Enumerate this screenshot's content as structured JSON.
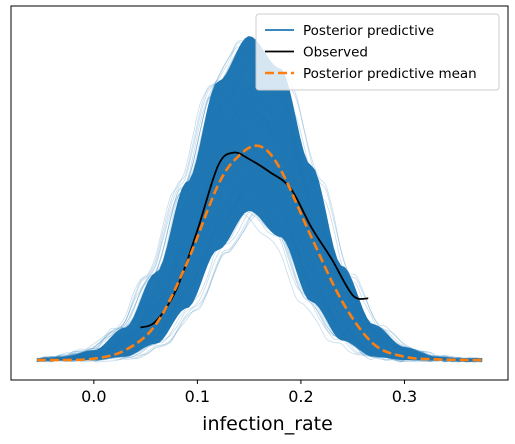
{
  "chart_data": {
    "type": "line",
    "title": "",
    "xlabel": "infection_rate",
    "ylabel": "",
    "xlim": [
      -0.08,
      0.4
    ],
    "ylim": [
      0,
      1.0
    ],
    "xticks": [
      0.0,
      0.1,
      0.2,
      0.3
    ],
    "xtick_labels": [
      "0.0",
      "0.1",
      "0.2",
      "0.3"
    ],
    "yticks_visible": false,
    "grid": false,
    "legend": {
      "position": "upper-right",
      "entries": [
        {
          "label": "Posterior predictive",
          "color": "#1f77b4",
          "style": "solid"
        },
        {
          "label": "Observed",
          "color": "#000000",
          "style": "solid"
        },
        {
          "label": "Posterior predictive mean",
          "color": "#ff7f0e",
          "style": "dashed"
        }
      ]
    },
    "series": [
      {
        "name": "Posterior predictive",
        "kind": "band",
        "color": "#1f77b4",
        "x": [
          -0.055,
          -0.03,
          0.0,
          0.03,
          0.06,
          0.09,
          0.12,
          0.15,
          0.18,
          0.21,
          0.24,
          0.27,
          0.3,
          0.33,
          0.36,
          0.375
        ],
        "y_lower": [
          0.0,
          0.0,
          0.0,
          0.01,
          0.05,
          0.16,
          0.34,
          0.46,
          0.38,
          0.18,
          0.06,
          0.01,
          0.0,
          0.0,
          0.0,
          0.0
        ],
        "y_upper": [
          0.0,
          0.01,
          0.03,
          0.1,
          0.27,
          0.55,
          0.86,
          1.0,
          0.9,
          0.6,
          0.29,
          0.11,
          0.04,
          0.01,
          0.0,
          0.0
        ]
      },
      {
        "name": "Observed",
        "color": "#000000",
        "x": [
          0.045,
          0.06,
          0.08,
          0.1,
          0.12,
          0.135,
          0.15,
          0.17,
          0.19,
          0.21,
          0.23,
          0.25,
          0.265
        ],
        "y": [
          0.1,
          0.12,
          0.22,
          0.4,
          0.6,
          0.64,
          0.62,
          0.58,
          0.53,
          0.41,
          0.31,
          0.2,
          0.19
        ]
      },
      {
        "name": "Posterior predictive mean",
        "color": "#ff7f0e",
        "x": [
          -0.055,
          -0.03,
          0.0,
          0.03,
          0.06,
          0.09,
          0.12,
          0.14,
          0.16,
          0.18,
          0.21,
          0.24,
          0.27,
          0.3,
          0.33,
          0.36,
          0.375
        ],
        "y": [
          0.0,
          0.0,
          0.004,
          0.03,
          0.11,
          0.3,
          0.54,
          0.63,
          0.66,
          0.59,
          0.38,
          0.18,
          0.05,
          0.01,
          0.002,
          0.0,
          0.0
        ]
      }
    ]
  }
}
